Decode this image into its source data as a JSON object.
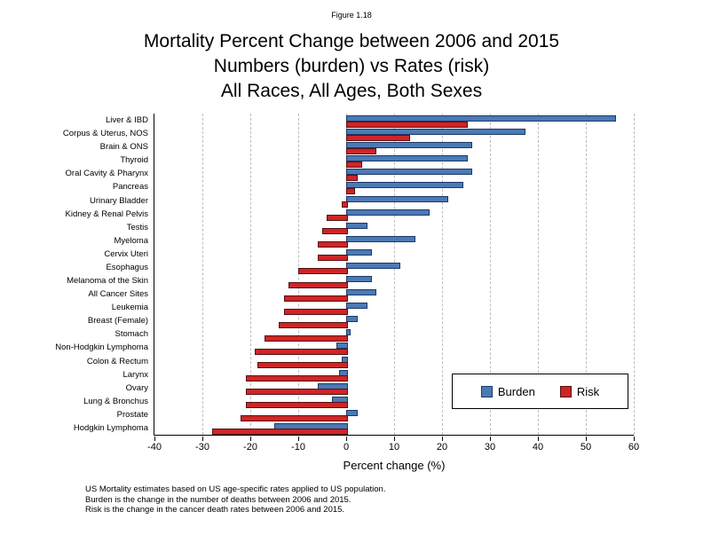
{
  "figure_label": "Figure 1.18",
  "title_lines": [
    "Mortality Percent Change between 2006 and 2015",
    "Numbers (burden) vs Rates (risk)",
    "All Races, All Ages, Both Sexes"
  ],
  "chart_data": {
    "type": "bar",
    "orientation": "horizontal",
    "title": "Mortality Percent Change between 2006 and 2015 — Numbers (burden) vs Rates (risk) — All Races, All Ages, Both Sexes",
    "xlabel": "Percent change (%)",
    "xlim": [
      -40,
      60
    ],
    "xticks": [
      -40,
      -30,
      -20,
      -10,
      0,
      10,
      20,
      30,
      40,
      50,
      60
    ],
    "grid": "vertical-dashed",
    "legend_position": "inside-lower-right",
    "categories": [
      "Liver & IBD",
      "Corpus & Uterus, NOS",
      "Brain & ONS",
      "Thyroid",
      "Oral Cavity & Pharynx",
      "Pancreas",
      "Urinary Bladder",
      "Kidney & Renal Pelvis",
      "Testis",
      "Myeloma",
      "Cervix Uteri",
      "Esophagus",
      "Melanoma of the Skin",
      "All Cancer Sites",
      "Leukemia",
      "Breast (Female)",
      "Stomach",
      "Non-Hodgkin Lymphoma",
      "Colon & Rectum",
      "Larynx",
      "Ovary",
      "Lung & Bronchus",
      "Prostate",
      "Hodgkin Lymphoma"
    ],
    "series": [
      {
        "name": "Burden",
        "color": "#4a7ab5",
        "border_color": "#1f3864",
        "values": [
          56,
          37,
          26,
          25,
          26,
          24,
          21,
          17,
          4,
          14,
          5,
          11,
          5,
          6,
          4,
          2,
          0.5,
          -2,
          -1,
          -1.5,
          -6,
          -3,
          2,
          -15
        ]
      },
      {
        "name": "Risk",
        "color": "#d02427",
        "border_color": "#551111",
        "values": [
          25,
          13,
          6,
          3,
          2,
          1.5,
          -1,
          -4,
          -5,
          -6,
          -6,
          -10,
          -12,
          -13,
          -13,
          -14,
          -17,
          -19,
          -18.5,
          -21,
          -21,
          -21,
          -22,
          -28
        ]
      }
    ]
  },
  "legend": {
    "entries": [
      "Burden",
      "Risk"
    ]
  },
  "footnotes": [
    "US Mortality estimates based on US age-specific rates applied to US population.",
    "Burden is the change in the number of deaths between 2006 and 2015.",
    "Risk is the change in the cancer death rates between 2006 and 2015."
  ]
}
